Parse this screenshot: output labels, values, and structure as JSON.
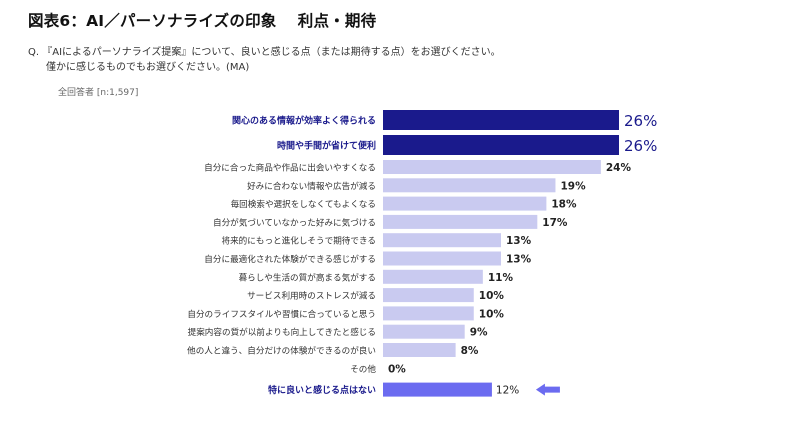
{
  "header": {
    "title": "図表6：AI／パーソナライズの印象　 利点・期待",
    "question_line1": "Q. 『AIによるパーソナライズ提案』について、良いと感じる点（または期待する点）をお選びください。",
    "question_line2": "僅かに感じるものでもお選びください。(MA)",
    "base": "全回答者 [n:1,597]"
  },
  "colors": {
    "top": "#1a1a8c",
    "normal": "#c9caf0",
    "last": "#6b6bf0",
    "arrow": "#6b6bf0",
    "top_label": "#1a1a8c",
    "last_label": "#1a1a8c",
    "normal_label": "#333333"
  },
  "chart_data": {
    "type": "bar",
    "orientation": "horizontal",
    "value_suffix": "%",
    "xlim": [
      0,
      26
    ],
    "categories": [
      "関心のある情報が効率よく得られる",
      "時間や手間が省けて便利",
      "自分に合った商品や作品に出会いやすくなる",
      "好みに合わない情報や広告が減る",
      "毎回検索や選択をしなくてもよくなる",
      "自分が気づいていなかった好みに気づける",
      "将来的にもっと進化しそうで期待できる",
      "自分に最適化された体験ができる感じがする",
      "暮らしや生活の質が高まる気がする",
      "サービス利用時のストレスが減る",
      "自分のライフスタイルや習慣に合っていると思う",
      "提案内容の質が以前よりも向上してきたと感じる",
      "他の人と違う、自分だけの体験ができるのが良い",
      "その他",
      "特に良いと感じる点はない"
    ],
    "values": [
      26,
      26,
      24,
      19,
      18,
      17,
      13,
      13,
      11,
      10,
      10,
      9,
      8,
      0,
      12
    ],
    "highlight": [
      "top",
      "top",
      "normal",
      "normal",
      "normal",
      "normal",
      "normal",
      "normal",
      "normal",
      "normal",
      "normal",
      "normal",
      "normal",
      "normal",
      "last"
    ],
    "arrow_on": "特に良いと感じる点はない"
  }
}
